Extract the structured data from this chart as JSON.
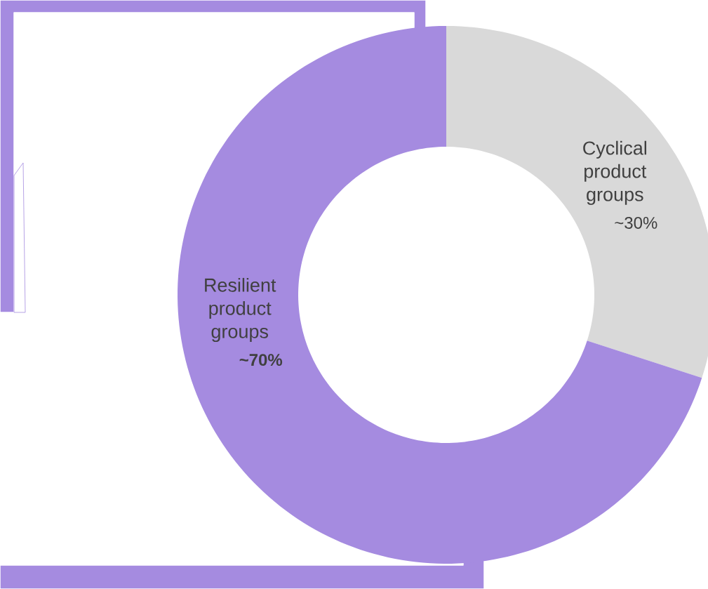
{
  "chart_data": {
    "type": "donut",
    "categories": [
      "Cyclical product groups",
      "Resilient product groups"
    ],
    "values": [
      30,
      70
    ],
    "colors": [
      "#d9d9d9",
      "#a58be0"
    ],
    "value_labels": [
      "~30%",
      "~70%"
    ]
  }
}
